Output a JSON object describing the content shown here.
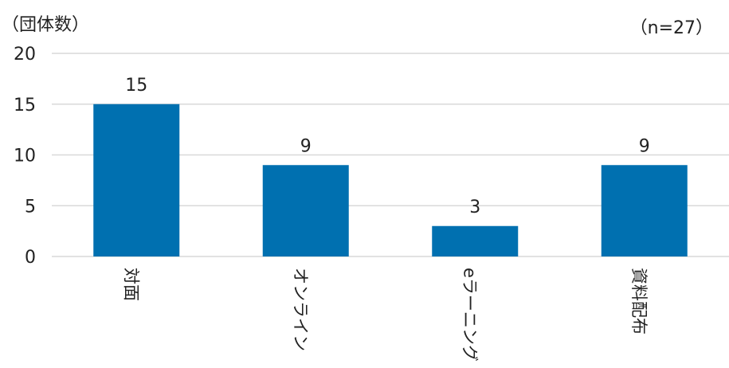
{
  "chart_data": {
    "type": "bar",
    "unit_label": "（団体数）",
    "note": "（n=27）",
    "categories": [
      "対面",
      "オンライン",
      "eラーニング",
      "資料配布"
    ],
    "values": [
      15,
      9,
      3,
      9
    ],
    "data_labels": [
      "15",
      "9",
      "3",
      "9"
    ],
    "ylim": [
      0,
      20
    ],
    "yticks": [
      0,
      5,
      10,
      15,
      20
    ],
    "grid": true,
    "bar_color": "#0070B0",
    "grid_color": "#D9D9D9"
  }
}
